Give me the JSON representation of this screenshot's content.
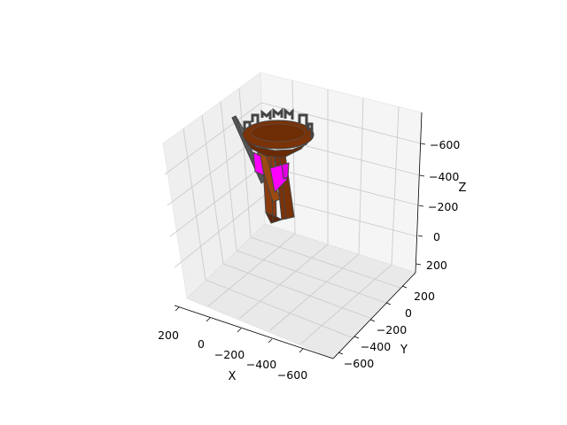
{
  "chart_data": {
    "type": "3d-surface",
    "title": "",
    "xlabel": "X",
    "ylabel": "Y",
    "zlabel": "Z",
    "xlim": [
      250,
      -750
    ],
    "ylim": [
      -750,
      300
    ],
    "zlim": [
      250,
      -780
    ],
    "grid": true,
    "x_ticks": [
      {
        "value": 200,
        "label": "200"
      },
      {
        "value": 0,
        "label": "0"
      },
      {
        "value": -200,
        "label": "−200"
      },
      {
        "value": -400,
        "label": "−400"
      },
      {
        "value": -600,
        "label": "−600"
      }
    ],
    "y_ticks": [
      {
        "value": -600,
        "label": "−600"
      },
      {
        "value": -400,
        "label": "−400"
      },
      {
        "value": -200,
        "label": "−200"
      },
      {
        "value": 0,
        "label": "0"
      },
      {
        "value": 200,
        "label": "200"
      }
    ],
    "z_ticks": [
      {
        "value": -600,
        "label": "−600"
      },
      {
        "value": -400,
        "label": "−400"
      },
      {
        "value": -200,
        "label": "−200"
      },
      {
        "value": 0,
        "label": "0"
      },
      {
        "value": 200,
        "label": "200"
      }
    ],
    "colors": {
      "primary_surface": "#8B3A0E",
      "secondary_surface": "#FF00FF",
      "edges": "#444444",
      "pane": "#F2F2F2",
      "grid": "#CCCCCC"
    }
  }
}
